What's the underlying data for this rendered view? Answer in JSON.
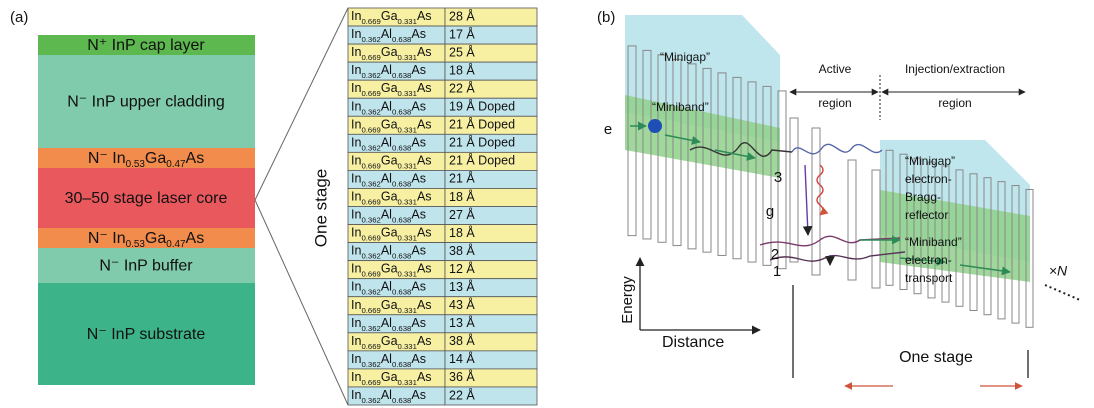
{
  "panel_a": {
    "label": "(a)",
    "stack_label": "One stage",
    "layers": [
      {
        "color": "#5cb84f",
        "runs": [
          {
            "text": "N⁺ InP cap layer"
          }
        ]
      },
      {
        "color": "#80cbac",
        "runs": [
          {
            "text": "N⁻ InP upper cladding"
          }
        ]
      },
      {
        "color": "#f28c4c",
        "runs": [
          {
            "text": "N⁻ In"
          },
          {
            "text": "0.53",
            "sub": true
          },
          {
            "text": "Ga"
          },
          {
            "text": "0.47",
            "sub": true
          },
          {
            "text": "As"
          }
        ]
      },
      {
        "color": "#e9585d",
        "runs": [
          {
            "text": "30–50 stage laser core"
          }
        ]
      },
      {
        "color": "#f28c4c",
        "runs": [
          {
            "text": "N⁻ In"
          },
          {
            "text": "0.53",
            "sub": true
          },
          {
            "text": "Ga"
          },
          {
            "text": "0.47",
            "sub": true
          },
          {
            "text": "As"
          }
        ]
      },
      {
        "color": "#80cbac",
        "runs": [
          {
            "text": "N⁻ InP buffer"
          }
        ]
      },
      {
        "color": "#3db38a",
        "runs": [
          {
            "text": "N⁻ InP substrate"
          }
        ]
      }
    ],
    "table": [
      {
        "material": [
          {
            "text": "In"
          },
          {
            "text": "0.669",
            "sub": true
          },
          {
            "text": "Ga"
          },
          {
            "text": "0.331",
            "sub": true
          },
          {
            "text": "As"
          }
        ],
        "thickness": "28 Å"
      },
      {
        "material": [
          {
            "text": "In"
          },
          {
            "text": "0.362",
            "sub": true
          },
          {
            "text": "Al"
          },
          {
            "text": "0.638",
            "sub": true
          },
          {
            "text": "As"
          }
        ],
        "thickness": "17 Å"
      },
      {
        "material": [
          {
            "text": "In"
          },
          {
            "text": "0.669",
            "sub": true
          },
          {
            "text": "Ga"
          },
          {
            "text": "0.331",
            "sub": true
          },
          {
            "text": "As"
          }
        ],
        "thickness": "25 Å"
      },
      {
        "material": [
          {
            "text": "In"
          },
          {
            "text": "0.362",
            "sub": true
          },
          {
            "text": "Al"
          },
          {
            "text": "0.638",
            "sub": true
          },
          {
            "text": "As"
          }
        ],
        "thickness": "18 Å"
      },
      {
        "material": [
          {
            "text": "In"
          },
          {
            "text": "0.669",
            "sub": true
          },
          {
            "text": "Ga"
          },
          {
            "text": "0.331",
            "sub": true
          },
          {
            "text": "As"
          }
        ],
        "thickness": "22 Å"
      },
      {
        "material": [
          {
            "text": "In"
          },
          {
            "text": "0.362",
            "sub": true
          },
          {
            "text": "Al"
          },
          {
            "text": "0.638",
            "sub": true
          },
          {
            "text": "As"
          }
        ],
        "thickness": "19 Å Doped"
      },
      {
        "material": [
          {
            "text": "In"
          },
          {
            "text": "0.669",
            "sub": true
          },
          {
            "text": "Ga"
          },
          {
            "text": "0.331",
            "sub": true
          },
          {
            "text": "As"
          }
        ],
        "thickness": "21 Å Doped"
      },
      {
        "material": [
          {
            "text": "In"
          },
          {
            "text": "0.362",
            "sub": true
          },
          {
            "text": "Al"
          },
          {
            "text": "0.638",
            "sub": true
          },
          {
            "text": "As"
          }
        ],
        "thickness": "21 Å Doped"
      },
      {
        "material": [
          {
            "text": "In"
          },
          {
            "text": "0.669",
            "sub": true
          },
          {
            "text": "Ga"
          },
          {
            "text": "0.331",
            "sub": true
          },
          {
            "text": "As"
          }
        ],
        "thickness": "21 Å Doped"
      },
      {
        "material": [
          {
            "text": "In"
          },
          {
            "text": "0.362",
            "sub": true
          },
          {
            "text": "Al"
          },
          {
            "text": "0.638",
            "sub": true
          },
          {
            "text": "As"
          }
        ],
        "thickness": "21 Å"
      },
      {
        "material": [
          {
            "text": "In"
          },
          {
            "text": "0.669",
            "sub": true
          },
          {
            "text": "Ga"
          },
          {
            "text": "0.331",
            "sub": true
          },
          {
            "text": "As"
          }
        ],
        "thickness": "18 Å"
      },
      {
        "material": [
          {
            "text": "In"
          },
          {
            "text": "0.362",
            "sub": true
          },
          {
            "text": "Al"
          },
          {
            "text": "0.638",
            "sub": true
          },
          {
            "text": "As"
          }
        ],
        "thickness": "27 Å"
      },
      {
        "material": [
          {
            "text": "In"
          },
          {
            "text": "0.669",
            "sub": true
          },
          {
            "text": "Ga"
          },
          {
            "text": "0.331",
            "sub": true
          },
          {
            "text": "As"
          }
        ],
        "thickness": "18 Å"
      },
      {
        "material": [
          {
            "text": "In"
          },
          {
            "text": "0.362",
            "sub": true
          },
          {
            "text": "Al"
          },
          {
            "text": "0.638",
            "sub": true
          },
          {
            "text": "As"
          }
        ],
        "thickness": "38 Å"
      },
      {
        "material": [
          {
            "text": "In"
          },
          {
            "text": "0.669",
            "sub": true
          },
          {
            "text": "Ga"
          },
          {
            "text": "0.331",
            "sub": true
          },
          {
            "text": "As"
          }
        ],
        "thickness": "12 Å"
      },
      {
        "material": [
          {
            "text": "In"
          },
          {
            "text": "0.362",
            "sub": true
          },
          {
            "text": "Al"
          },
          {
            "text": "0.638",
            "sub": true
          },
          {
            "text": "As"
          }
        ],
        "thickness": "13 Å"
      },
      {
        "material": [
          {
            "text": "In"
          },
          {
            "text": "0.669",
            "sub": true
          },
          {
            "text": "Ga"
          },
          {
            "text": "0.331",
            "sub": true
          },
          {
            "text": "As"
          }
        ],
        "thickness": "43 Å"
      },
      {
        "material": [
          {
            "text": "In"
          },
          {
            "text": "0.362",
            "sub": true
          },
          {
            "text": "Al"
          },
          {
            "text": "0.638",
            "sub": true
          },
          {
            "text": "As"
          }
        ],
        "thickness": "13 Å"
      },
      {
        "material": [
          {
            "text": "In"
          },
          {
            "text": "0.669",
            "sub": true
          },
          {
            "text": "Ga"
          },
          {
            "text": "0.331",
            "sub": true
          },
          {
            "text": "As"
          }
        ],
        "thickness": "38 Å"
      },
      {
        "material": [
          {
            "text": "In"
          },
          {
            "text": "0.362",
            "sub": true
          },
          {
            "text": "Al"
          },
          {
            "text": "0.638",
            "sub": true
          },
          {
            "text": "As"
          }
        ],
        "thickness": "14 Å"
      },
      {
        "material": [
          {
            "text": "In"
          },
          {
            "text": "0.669",
            "sub": true
          },
          {
            "text": "Ga"
          },
          {
            "text": "0.331",
            "sub": true
          },
          {
            "text": "As"
          }
        ],
        "thickness": "36 Å"
      },
      {
        "material": [
          {
            "text": "In"
          },
          {
            "text": "0.362",
            "sub": true
          },
          {
            "text": "Al"
          },
          {
            "text": "0.638",
            "sub": true
          },
          {
            "text": "As"
          }
        ],
        "thickness": "22 Å"
      }
    ]
  },
  "panel_b": {
    "label": "(b)",
    "minigap_left": "“Minigap”",
    "miniband_left": "“Miniband”",
    "electron": "e",
    "active_region": [
      "Active",
      "region"
    ],
    "injection_region": [
      "Injection/extraction",
      "region"
    ],
    "level_3": "3",
    "level_g": "g",
    "level_2": "2",
    "level_1": "1",
    "minigap_right": [
      "“Minigap”",
      "electron-",
      "Bragg-",
      "reflector"
    ],
    "miniband_right": [
      "“Miniband”",
      "electron-",
      "transport"
    ],
    "energy": "Energy",
    "distance": "Distance",
    "one_stage": "One stage",
    "repeat": "×N"
  }
}
